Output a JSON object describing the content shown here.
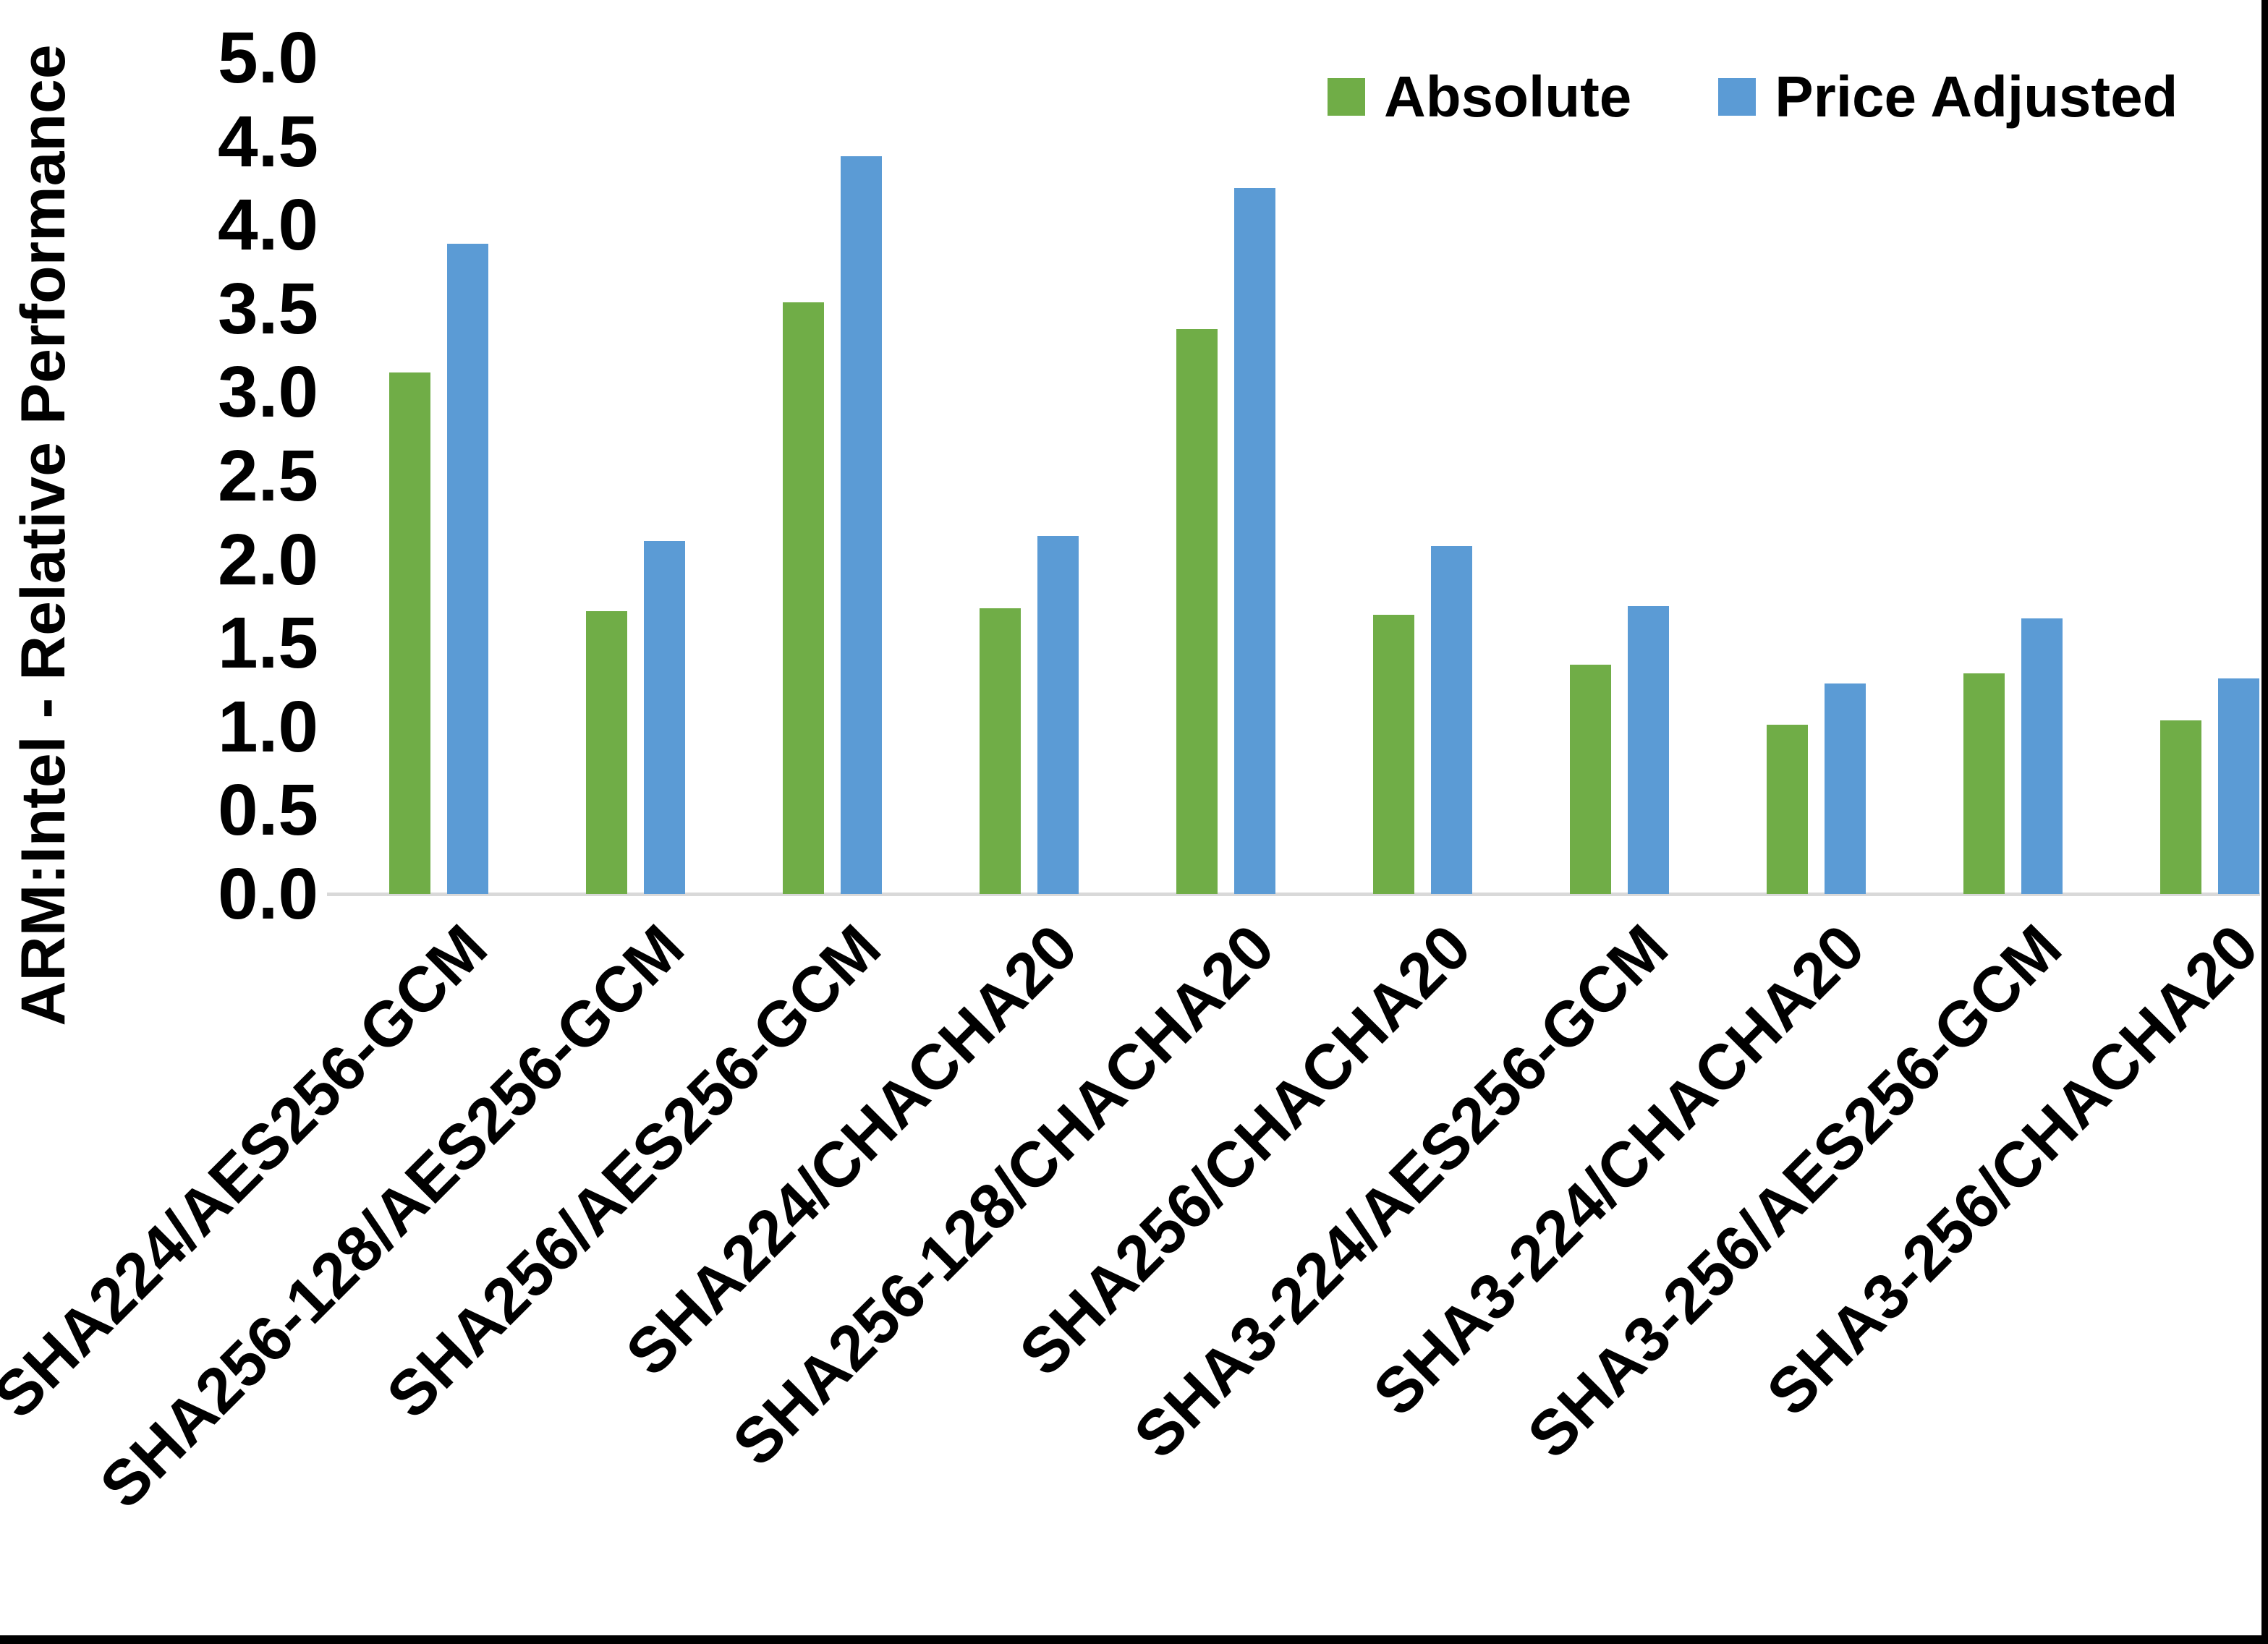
{
  "chart_data": {
    "type": "bar",
    "title": "",
    "xlabel": "",
    "ylabel": "ARM:Intel - Relative Performance",
    "categories": [
      "SHA224/AES256-GCM",
      "SHA256-128/AES256-GCM",
      "SHA256/AES256-GCM",
      "SHA224/CHACHA20",
      "SHA256-128/CHACHA20",
      "SHA256/CHACHA20",
      "SHA3-224/AES256-GCM",
      "SHA3-224/CHACHA20",
      "SHA3-256/AES256-GCM",
      "SHA3-256/CHACHA20"
    ],
    "series": [
      {
        "name": "Absolute",
        "color": "#70AD47",
        "values": [
          3.12,
          1.69,
          3.54,
          1.71,
          3.38,
          1.67,
          1.37,
          1.01,
          1.32,
          1.04
        ]
      },
      {
        "name": "Price Adjusted",
        "color": "#5B9BD5",
        "values": [
          3.89,
          2.11,
          4.41,
          2.14,
          4.22,
          2.08,
          1.72,
          1.26,
          1.65,
          1.29
        ]
      }
    ],
    "y_axis": {
      "min": 0.0,
      "max": 5.0,
      "step": 0.5,
      "tick_labels": [
        "0.0",
        "0.5",
        "1.0",
        "1.5",
        "2.0",
        "2.5",
        "3.0",
        "3.5",
        "4.0",
        "4.5",
        "5.0"
      ]
    },
    "legend_position": "top-right",
    "grid": false,
    "axis_line_color": "#D9D9D9",
    "frame_border_color": "#000000"
  }
}
